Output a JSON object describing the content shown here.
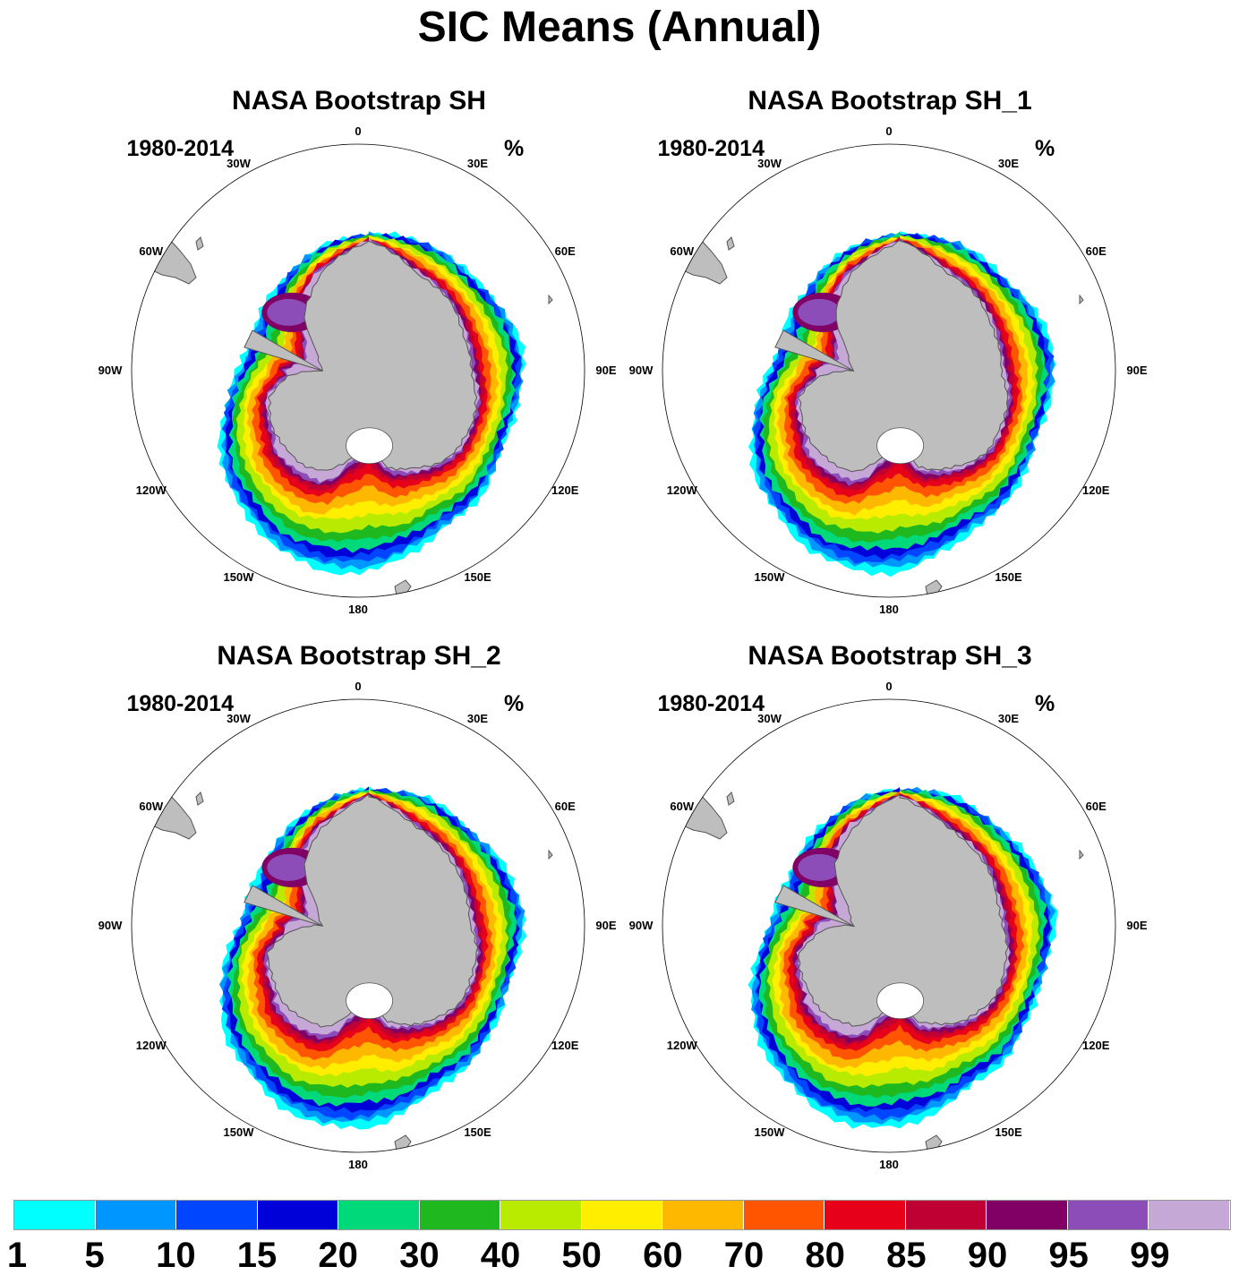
{
  "title": "SIC Means (Annual)",
  "panels": [
    {
      "title": "NASA Bootstrap SH",
      "period": "1980-2014",
      "units": "%",
      "variant": 0
    },
    {
      "title": "NASA Bootstrap SH_1",
      "period": "1980-2014",
      "units": "%",
      "variant": 1
    },
    {
      "title": "NASA Bootstrap SH_2",
      "period": "1980-2014",
      "units": "%",
      "variant": 2
    },
    {
      "title": "NASA Bootstrap SH_3",
      "period": "1980-2014",
      "units": "%",
      "variant": 3
    }
  ],
  "longitude_labels": [
    "0",
    "30E",
    "60E",
    "90E",
    "120E",
    "150E",
    "180",
    "150W",
    "120W",
    "90W",
    "60W",
    "30W"
  ],
  "colorbar": {
    "labels": [
      "1",
      "5",
      "10",
      "15",
      "20",
      "30",
      "40",
      "50",
      "60",
      "70",
      "80",
      "85",
      "90",
      "95",
      "99"
    ],
    "colors": [
      "#00ffff",
      "#0096ff",
      "#0045ff",
      "#0000d9",
      "#00d97a",
      "#1fb81f",
      "#b8eb00",
      "#ffee00",
      "#ffb800",
      "#ff5500",
      "#e6001a",
      "#bf0033",
      "#800066",
      "#8c4db8",
      "#c6a8d6"
    ]
  },
  "map_colors": {
    "land": "#bebebe",
    "ocean": "#ffffff",
    "coast": "#555555"
  }
}
